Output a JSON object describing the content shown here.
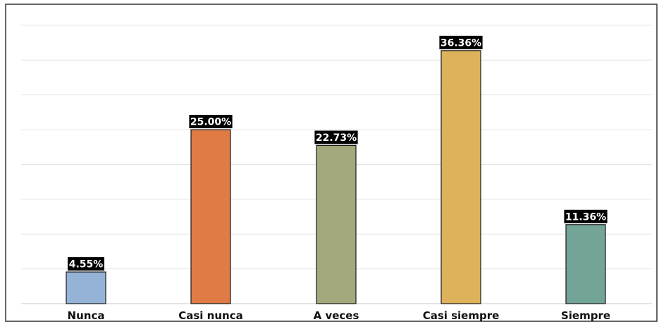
{
  "chart_data": {
    "type": "bar",
    "title": "",
    "xlabel": "",
    "ylabel": "",
    "categories": [
      "Nunca",
      "Casi nunca",
      "A veces",
      "Casi siempre",
      "Siempre"
    ],
    "values": [
      4.55,
      25.0,
      22.73,
      36.36,
      11.36
    ],
    "data_labels": [
      "4.55%",
      "25.00%",
      "22.73%",
      "36.36%",
      "11.36%"
    ],
    "colors": [
      "#95b3d7",
      "#e07b45",
      "#a3a97c",
      "#ddb25b",
      "#72a497"
    ],
    "ylim": [
      0,
      41
    ],
    "y_tick_values": [
      0,
      5,
      10,
      15,
      20,
      25,
      30,
      35,
      40
    ],
    "grid": true,
    "legend": "none"
  }
}
